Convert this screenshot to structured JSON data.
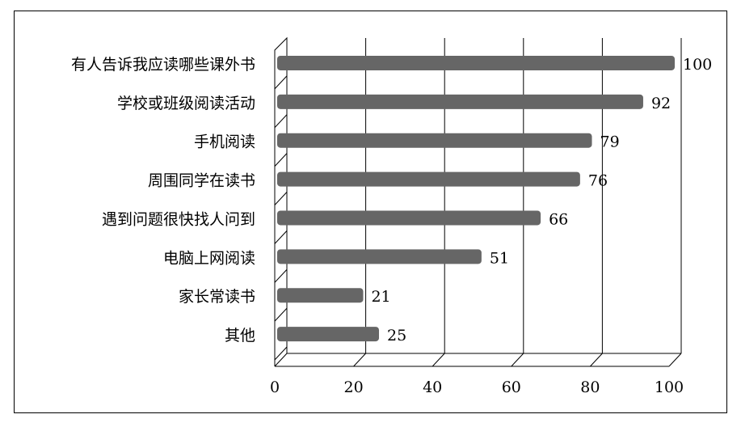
{
  "chart_data": {
    "type": "bar",
    "orientation": "horizontal",
    "categories": [
      "有人告诉我应读哪些课外书",
      "学校或班级阅读活动",
      "手机阅读",
      "周围同学在读书",
      "遇到问题很快找人问到",
      "电脑上网阅读",
      "家长常读书",
      "其他"
    ],
    "values": [
      100,
      92,
      79,
      76,
      66,
      51,
      21,
      25
    ],
    "color": "#666666",
    "xlim": [
      0,
      100
    ],
    "xticks": [
      0,
      20,
      40,
      60,
      80,
      100
    ],
    "grid": true
  }
}
